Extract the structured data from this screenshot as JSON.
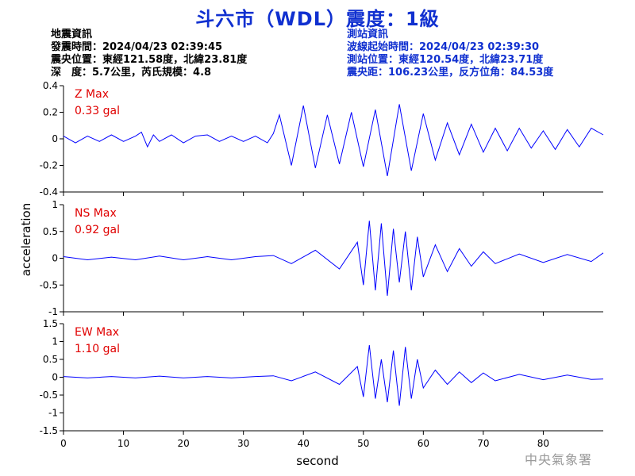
{
  "title": "斗六市（WDL）震度：1級",
  "info_left": {
    "heading": "地震資訊",
    "origin_time": "發震時間：2024/04/23 02:39:45",
    "epicenter": "震央位置：東經121.58度，北緯23.81度",
    "depth_magnitude": "深　度：5.7公里，芮氏規模：4.8"
  },
  "info_right": {
    "heading": "測站資訊",
    "wave_start": "波線起始時間：2024/04/23 02:39:30",
    "station_location": "測站位置：東經120.54度，北緯23.71度",
    "distance": "震央距：106.23公里，反方位角：84.53度"
  },
  "watermark": "中央氣象署",
  "colors": {
    "trace": "#0000ff",
    "title": "#1030d0",
    "max_label": "#e00000",
    "axes": "#000000"
  },
  "chart_data": {
    "type": "line",
    "xlabel": "second",
    "ylabel": "acceleration",
    "xlim": [
      0,
      90
    ],
    "x_ticks": [
      0,
      10,
      20,
      30,
      40,
      50,
      60,
      70,
      80
    ],
    "panels": [
      {
        "name": "Z",
        "max_label": "Z Max",
        "max_value": "0.33 gal",
        "ylim": [
          -0.4,
          0.4
        ],
        "y_ticks": [
          -0.4,
          -0.2,
          0,
          0.2,
          0.4
        ],
        "y_tick_labels": [
          "-0.4",
          "-0.2",
          "0",
          "0.2",
          "0.4"
        ],
        "x": [
          0,
          2,
          4,
          6,
          8,
          10,
          12,
          13,
          14,
          15,
          16,
          18,
          20,
          22,
          24,
          26,
          28,
          30,
          32,
          34,
          35,
          36,
          38,
          40,
          42,
          44,
          46,
          48,
          50,
          52,
          54,
          56,
          58,
          60,
          62,
          64,
          66,
          68,
          70,
          72,
          74,
          76,
          78,
          80,
          82,
          84,
          86,
          88,
          90
        ],
        "y": [
          0.02,
          -0.03,
          0.02,
          -0.02,
          0.03,
          -0.02,
          0.02,
          0.05,
          -0.06,
          0.03,
          -0.02,
          0.03,
          -0.03,
          0.02,
          0.03,
          -0.02,
          0.02,
          -0.02,
          0.02,
          -0.03,
          0.04,
          0.18,
          -0.2,
          0.25,
          -0.22,
          0.18,
          -0.19,
          0.2,
          -0.21,
          0.22,
          -0.28,
          0.26,
          -0.24,
          0.19,
          -0.16,
          0.12,
          -0.12,
          0.11,
          -0.1,
          0.08,
          -0.09,
          0.08,
          -0.07,
          0.06,
          -0.08,
          0.07,
          -0.06,
          0.08,
          0.03
        ]
      },
      {
        "name": "NS",
        "max_label": "NS Max",
        "max_value": "0.92 gal",
        "ylim": [
          -1,
          1
        ],
        "y_ticks": [
          -1,
          -0.5,
          0,
          0.5,
          1
        ],
        "y_tick_labels": [
          "-1",
          "-0.5",
          "0",
          "0.5",
          "1"
        ],
        "x": [
          0,
          4,
          8,
          12,
          16,
          20,
          24,
          28,
          32,
          35,
          38,
          42,
          46,
          49,
          50,
          51,
          52,
          53,
          54,
          55,
          56,
          57,
          58,
          59,
          60,
          62,
          64,
          66,
          68,
          70,
          72,
          76,
          80,
          84,
          88,
          90
        ],
        "y": [
          0.03,
          -0.03,
          0.02,
          -0.03,
          0.04,
          -0.03,
          0.03,
          -0.03,
          0.03,
          0.05,
          -0.1,
          0.15,
          -0.2,
          0.3,
          -0.5,
          0.7,
          -0.6,
          0.65,
          -0.7,
          0.55,
          -0.45,
          0.5,
          -0.6,
          0.4,
          -0.35,
          0.25,
          -0.25,
          0.18,
          -0.15,
          0.12,
          -0.1,
          0.08,
          -0.08,
          0.07,
          -0.06,
          0.1
        ]
      },
      {
        "name": "EW",
        "max_label": "EW Max",
        "max_value": "1.10 gal",
        "ylim": [
          -1.5,
          1.5
        ],
        "y_ticks": [
          -1.5,
          -1,
          -0.5,
          0,
          0.5,
          1,
          1.5
        ],
        "y_tick_labels": [
          "-1.5",
          "-1",
          "-0.5",
          "0",
          "0.5",
          "1",
          "1.5"
        ],
        "x": [
          0,
          4,
          8,
          12,
          16,
          20,
          24,
          28,
          32,
          35,
          38,
          42,
          46,
          49,
          50,
          51,
          52,
          53,
          54,
          55,
          56,
          57,
          58,
          59,
          60,
          62,
          64,
          66,
          68,
          70,
          72,
          76,
          80,
          84,
          88,
          90
        ],
        "y": [
          0.02,
          -0.02,
          0.02,
          -0.02,
          0.03,
          -0.02,
          0.02,
          -0.02,
          0.02,
          0.04,
          -0.1,
          0.15,
          -0.2,
          0.3,
          -0.55,
          0.9,
          -0.6,
          0.5,
          -0.7,
          0.75,
          -0.8,
          0.85,
          -0.6,
          0.5,
          -0.3,
          0.2,
          -0.2,
          0.15,
          -0.15,
          0.12,
          -0.1,
          0.08,
          -0.07,
          0.06,
          -0.06,
          -0.05
        ]
      }
    ]
  }
}
